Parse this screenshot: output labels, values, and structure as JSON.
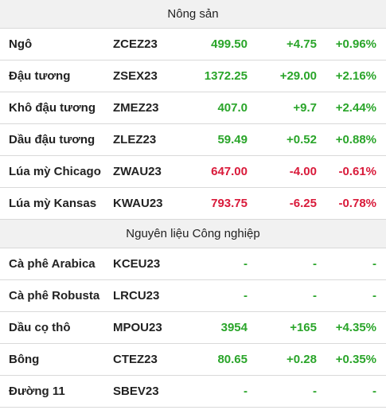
{
  "colors": {
    "up": "#2aa52a",
    "down": "#d91a3a",
    "header_bg": "#f1f1f1"
  },
  "sections": [
    {
      "title": "Nông sản",
      "rows": [
        {
          "name": "Ngô",
          "code": "ZCEZ23",
          "price": "499.50",
          "change": "+4.75",
          "pct": "+0.96%",
          "dir": "up"
        },
        {
          "name": "Đậu tương",
          "code": "ZSEX23",
          "price": "1372.25",
          "change": "+29.00",
          "pct": "+2.16%",
          "dir": "up"
        },
        {
          "name": "Khô đậu tương",
          "code": "ZMEZ23",
          "price": "407.0",
          "change": "+9.7",
          "pct": "+2.44%",
          "dir": "up"
        },
        {
          "name": "Dầu đậu tương",
          "code": "ZLEZ23",
          "price": "59.49",
          "change": "+0.52",
          "pct": "+0.88%",
          "dir": "up"
        },
        {
          "name": "Lúa mỳ Chicago",
          "code": "ZWAU23",
          "price": "647.00",
          "change": "-4.00",
          "pct": "-0.61%",
          "dir": "down"
        },
        {
          "name": "Lúa mỳ Kansas",
          "code": "KWAU23",
          "price": "793.75",
          "change": "-6.25",
          "pct": "-0.78%",
          "dir": "down"
        }
      ]
    },
    {
      "title": "Nguyên liệu Công nghiệp",
      "rows": [
        {
          "name": "Cà phê Arabica",
          "code": "KCEU23",
          "price": "-",
          "change": "-",
          "pct": "-",
          "dir": "flat"
        },
        {
          "name": "Cà phê Robusta",
          "code": "LRCU23",
          "price": "-",
          "change": "-",
          "pct": "-",
          "dir": "flat"
        },
        {
          "name": "Dầu cọ thô",
          "code": "MPOU23",
          "price": "3954",
          "change": "+165",
          "pct": "+4.35%",
          "dir": "up"
        },
        {
          "name": "Bông",
          "code": "CTEZ23",
          "price": "80.65",
          "change": "+0.28",
          "pct": "+0.35%",
          "dir": "up"
        },
        {
          "name": "Đường 11",
          "code": "SBEV23",
          "price": "-",
          "change": "-",
          "pct": "-",
          "dir": "flat"
        }
      ]
    }
  ]
}
